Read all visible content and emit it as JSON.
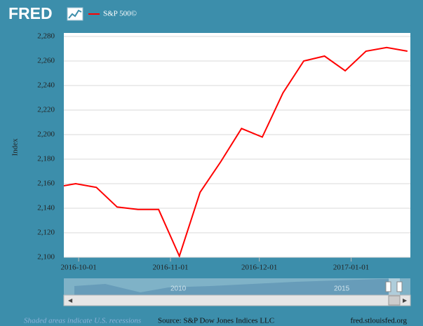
{
  "chart_data": {
    "type": "line",
    "logo": "FRED",
    "y_label": "Index",
    "x": [
      "2016-09-23",
      "2016-09-30",
      "2016-10-07",
      "2016-10-14",
      "2016-10-21",
      "2016-10-28",
      "2016-11-04",
      "2016-11-11",
      "2016-11-18",
      "2016-11-25",
      "2016-12-02",
      "2016-12-09",
      "2016-12-16",
      "2016-12-23",
      "2016-12-30",
      "2017-01-06",
      "2017-01-13",
      "2017-01-20"
    ],
    "series": [
      {
        "name": "S&P 500©",
        "color": "#ff0000",
        "values": [
          2157,
          2160,
          2157,
          2141,
          2139,
          2139,
          2101,
          2153,
          2178,
          2205,
          2198,
          2234,
          2260,
          2264,
          2252,
          2268,
          2271,
          2268
        ]
      }
    ],
    "xlim": [
      "2016-09-26",
      "2017-01-21"
    ],
    "xticks": [
      "2016-10-01",
      "2016-11-01",
      "2016-12-01",
      "2017-01-01"
    ],
    "ylim": [
      2100,
      2280
    ],
    "yticks": [
      {
        "value": 2100,
        "label": "2,100"
      },
      {
        "value": 2120,
        "label": "2,120"
      },
      {
        "value": 2140,
        "label": "2,140"
      },
      {
        "value": 2160,
        "label": "2,160"
      },
      {
        "value": 2180,
        "label": "2,180"
      },
      {
        "value": 2200,
        "label": "2,200"
      },
      {
        "value": 2220,
        "label": "2,220"
      },
      {
        "value": 2240,
        "label": "2,240"
      },
      {
        "value": 2260,
        "label": "2,260"
      },
      {
        "value": 2280,
        "label": "2,280"
      }
    ],
    "grid": true,
    "navigator_labels": [
      "2010",
      "2015"
    ],
    "recession_note": "Shaded areas indicate U.S. recessions",
    "source": "Source: S&P Dow Jones Indices LLC",
    "url": "fred.stlouisfed.org"
  }
}
